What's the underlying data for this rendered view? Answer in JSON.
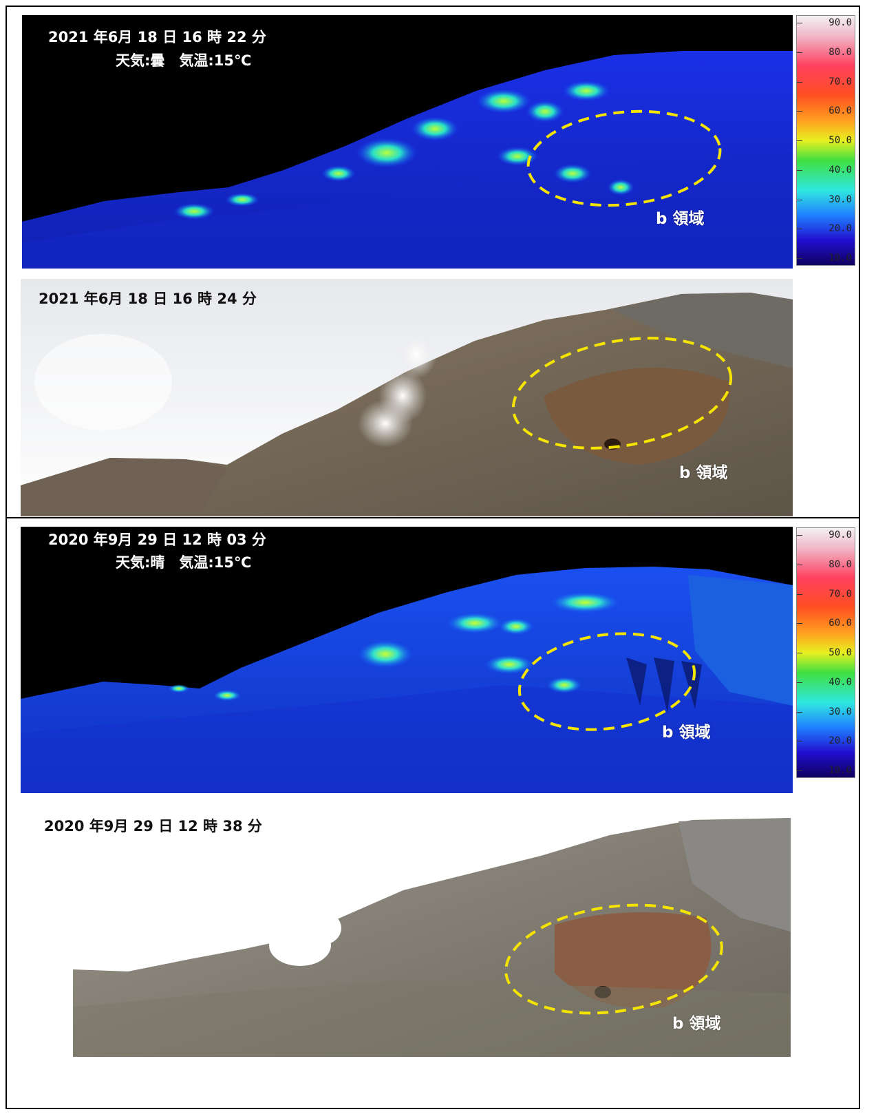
{
  "panels": {
    "thermal_2021": {
      "timestamp": "2021 年6月 18 日 16 時 22 分",
      "weather": "天気:曇　気温:15℃",
      "region_label": "b 領域"
    },
    "visible_2021": {
      "timestamp": "2021 年6月 18 日 16 時 24 分",
      "region_label": "b 領域"
    },
    "thermal_2020": {
      "timestamp": "2020 年9月 29 日 12 時 03 分",
      "weather": "天気:晴　気温:15℃",
      "region_label": "b 領域"
    },
    "visible_2020": {
      "timestamp": "2020 年9月 29 日 12 時 38 分",
      "region_label": "b 領域"
    }
  },
  "temperature_scale": {
    "ticks": [
      "90.0",
      "80.0",
      "70.0",
      "60.0",
      "50.0",
      "40.0",
      "30.0",
      "20.0",
      "10.0"
    ],
    "ellipse_color": "#f5e400"
  }
}
